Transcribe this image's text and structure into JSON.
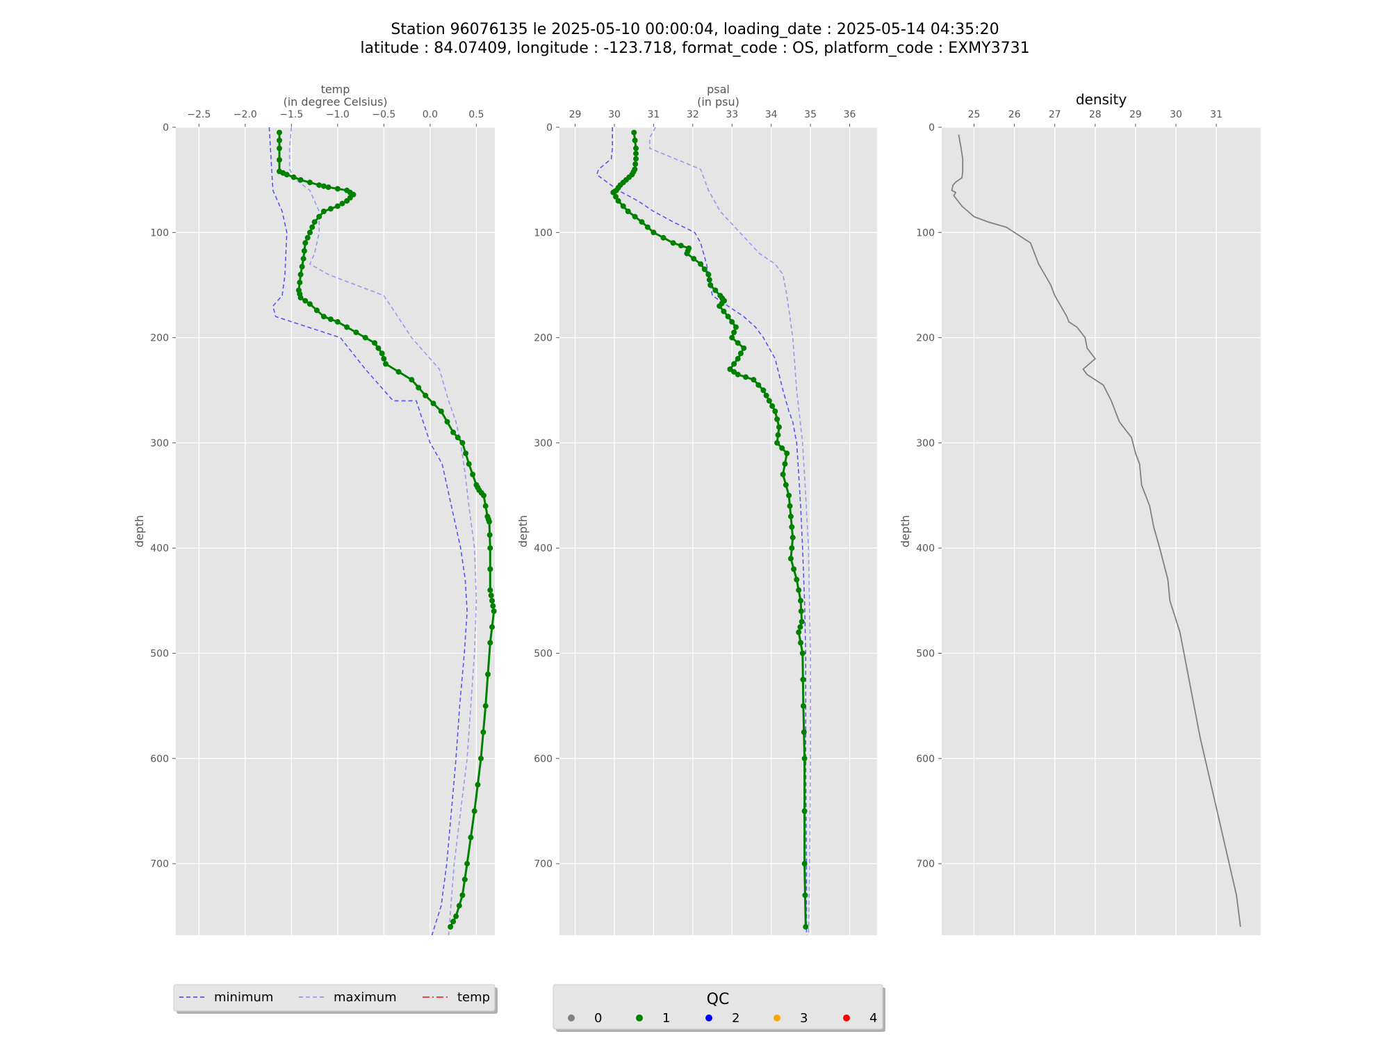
{
  "figure": {
    "title_line1": "Station 96076135 le 2025-05-10 00:00:04, loading_date : 2025-05-14 04:35:20",
    "title_line2": "latitude : 84.07409, longitude : -123.718, format_code : OS, platform_code : EXMY3731"
  },
  "colors": {
    "panel_bg": "#e5e5e5",
    "grid": "#ffffff",
    "minimum": "#5555ee",
    "maximum": "#9999ee",
    "profile": "#008000",
    "density": "#808080",
    "legend_temp": "#ee3333"
  },
  "legend_lines": {
    "items": [
      {
        "label": "minimum",
        "color": "#5555ee",
        "style": "dashed"
      },
      {
        "label": "maximum",
        "color": "#9999ee",
        "style": "dashed"
      },
      {
        "label": "temp",
        "color": "#ee3333",
        "style": "dashdot"
      }
    ]
  },
  "legend_qc": {
    "title": "QC",
    "items": [
      {
        "label": "0",
        "color": "#808080"
      },
      {
        "label": "1",
        "color": "#008000"
      },
      {
        "label": "2",
        "color": "#0000ff"
      },
      {
        "label": "3",
        "color": "#ffa500"
      },
      {
        "label": "4",
        "color": "#ff0000"
      }
    ]
  },
  "chart_data": [
    {
      "type": "line",
      "title": "temp",
      "subtitle": "(in degree Celsius)",
      "ylabel": "depth",
      "xlim": [
        -2.75,
        0.7
      ],
      "ylim": [
        768,
        0
      ],
      "xticks": [
        -2.5,
        -2.0,
        -1.5,
        -1.0,
        -0.5,
        0.0,
        0.5
      ],
      "xtick_labels": [
        "−2.5",
        "−2.0",
        "−1.5",
        "−1.0",
        "−0.5",
        "0.0",
        "0.5"
      ],
      "yticks": [
        0,
        100,
        200,
        300,
        400,
        500,
        600,
        700
      ],
      "grid": true,
      "series": [
        {
          "name": "minimum",
          "style": "dashed",
          "color": "#5555ee",
          "x": [
            -1.74,
            -1.72,
            -1.7,
            -1.6,
            -1.55,
            -1.57,
            -1.6,
            -1.7,
            -1.67,
            -0.97,
            -0.7,
            -0.4,
            -0.15,
            0.0,
            0.13,
            0.18,
            0.33,
            0.38,
            0.4,
            0.37,
            0.32,
            0.28,
            0.23,
            0.18,
            0.12,
            0.02
          ],
          "y": [
            0,
            30,
            60,
            80,
            100,
            140,
            160,
            170,
            180,
            200,
            230,
            260,
            260,
            300,
            320,
            340,
            400,
            430,
            460,
            500,
            550,
            600,
            650,
            700,
            740,
            768
          ]
        },
        {
          "name": "maximum",
          "style": "dashed",
          "color": "#9999ee",
          "x": [
            -1.5,
            -1.52,
            -1.52,
            -1.45,
            -1.3,
            -1.2,
            -1.2,
            -1.25,
            -1.3,
            -1.1,
            -0.5,
            -0.35,
            -0.2,
            0.1,
            0.2,
            0.28,
            0.33,
            0.38,
            0.42,
            0.48,
            0.5,
            0.48,
            0.44,
            0.4,
            0.33,
            0.26,
            0.2
          ],
          "y": [
            0,
            20,
            40,
            50,
            60,
            80,
            100,
            120,
            130,
            140,
            160,
            180,
            200,
            230,
            260,
            280,
            300,
            330,
            360,
            400,
            450,
            500,
            550,
            600,
            650,
            700,
            768
          ]
        },
        {
          "name": "",
          "style": "line-markers",
          "color": "#008000",
          "x": [
            -1.63,
            -1.63,
            -1.63,
            -1.55,
            -1.4,
            -1.2,
            -1.1,
            -0.9,
            -0.83,
            -0.9,
            -1.0,
            -1.15,
            -1.25,
            -1.3,
            -1.35,
            -1.37,
            -1.4,
            -1.42,
            -1.4,
            -1.3,
            -1.15,
            -1.0,
            -0.8,
            -0.6,
            -0.52,
            -0.48,
            -0.2,
            -0.05,
            0.12,
            0.25,
            0.35,
            0.42,
            0.5,
            0.53,
            0.58,
            0.62,
            0.64,
            0.65,
            0.65,
            0.67,
            0.69,
            0.65,
            0.6,
            0.55,
            0.48,
            0.4,
            0.35,
            0.28,
            0.22
          ],
          "y": [
            5,
            20,
            42,
            45,
            50,
            55,
            57,
            60,
            64,
            70,
            75,
            80,
            90,
            100,
            110,
            125,
            140,
            155,
            162,
            168,
            180,
            185,
            195,
            205,
            215,
            225,
            240,
            255,
            270,
            290,
            300,
            320,
            340,
            345,
            350,
            370,
            375,
            400,
            440,
            450,
            460,
            490,
            550,
            600,
            650,
            700,
            730,
            750,
            760
          ]
        }
      ]
    },
    {
      "type": "line",
      "title": "psal",
      "subtitle": "(in psu)",
      "ylabel": "depth",
      "xlim": [
        28.6,
        36.7
      ],
      "ylim": [
        768,
        0
      ],
      "xticks": [
        29,
        30,
        31,
        32,
        33,
        34,
        35,
        36
      ],
      "xtick_labels": [
        "29",
        "30",
        "31",
        "32",
        "33",
        "34",
        "35",
        "36"
      ],
      "yticks": [
        0,
        100,
        200,
        300,
        400,
        500,
        600,
        700
      ],
      "grid": true,
      "series": [
        {
          "name": "minimum",
          "style": "dashed",
          "color": "#5555ee",
          "x": [
            29.95,
            29.95,
            29.92,
            29.6,
            29.55,
            30.1,
            30.6,
            31.0,
            31.5,
            32.05,
            32.2,
            32.35,
            32.5,
            32.9,
            33.3,
            33.6,
            33.8,
            34.1,
            34.3,
            34.45,
            34.55,
            34.65,
            34.7,
            34.75,
            34.8,
            34.85,
            34.88,
            34.88,
            34.9,
            34.9
          ],
          "y": [
            0,
            20,
            30,
            40,
            45,
            60,
            70,
            80,
            90,
            100,
            110,
            130,
            160,
            170,
            180,
            190,
            200,
            220,
            250,
            270,
            280,
            300,
            330,
            360,
            400,
            450,
            500,
            600,
            700,
            768
          ]
        },
        {
          "name": "maximum",
          "style": "dashed",
          "color": "#9999ee",
          "x": [
            31.05,
            30.9,
            30.9,
            32.2,
            32.4,
            32.7,
            33.2,
            33.7,
            34.1,
            34.3,
            34.4,
            34.55,
            34.65,
            34.8,
            34.88,
            34.95,
            35.0,
            35.0,
            34.98,
            34.95
          ],
          "y": [
            0,
            10,
            20,
            40,
            60,
            80,
            100,
            120,
            130,
            140,
            160,
            200,
            250,
            300,
            350,
            400,
            500,
            600,
            700,
            768
          ]
        },
        {
          "name": "",
          "style": "line-markers",
          "color": "#008000",
          "x": [
            30.5,
            30.55,
            30.55,
            30.52,
            30.45,
            30.3,
            30.15,
            30.05,
            29.97,
            30.1,
            30.35,
            30.7,
            31.0,
            31.5,
            31.9,
            31.85,
            32.2,
            32.4,
            32.45,
            32.7,
            32.8,
            32.68,
            32.9,
            33.1,
            33.0,
            33.3,
            33.15,
            32.95,
            33.15,
            33.55,
            33.8,
            33.95,
            34.1,
            34.2,
            34.15,
            34.4,
            34.3,
            34.45,
            34.5,
            34.55,
            34.5,
            34.65,
            34.75,
            34.78,
            34.7,
            34.8,
            34.82,
            34.85,
            34.85,
            34.88
          ],
          "y": [
            5,
            20,
            30,
            40,
            45,
            50,
            55,
            60,
            62,
            70,
            80,
            90,
            100,
            110,
            115,
            120,
            130,
            140,
            150,
            160,
            165,
            170,
            180,
            190,
            200,
            210,
            220,
            230,
            235,
            240,
            250,
            260,
            270,
            285,
            300,
            310,
            330,
            350,
            370,
            390,
            410,
            430,
            450,
            470,
            480,
            500,
            550,
            600,
            700,
            760
          ]
        }
      ]
    },
    {
      "type": "line",
      "title": "density",
      "subtitle": "",
      "ylabel": "depth",
      "xlim": [
        24.2,
        32.1
      ],
      "ylim": [
        768,
        0
      ],
      "xticks": [
        25,
        26,
        27,
        28,
        29,
        30,
        31
      ],
      "xtick_labels": [
        "25",
        "26",
        "27",
        "28",
        "29",
        "30",
        "31"
      ],
      "yticks": [
        0,
        100,
        200,
        300,
        400,
        500,
        600,
        700
      ],
      "grid": true,
      "series": [
        {
          "name": "",
          "style": "line",
          "color": "#808080",
          "x": [
            24.62,
            24.68,
            24.72,
            24.72,
            24.7,
            24.55,
            24.48,
            24.45,
            24.55,
            24.5,
            24.7,
            25.0,
            25.35,
            25.8,
            26.2,
            26.4,
            26.5,
            26.6,
            26.75,
            26.9,
            27.0,
            27.15,
            27.3,
            27.35,
            27.55,
            27.75,
            27.8,
            28.0,
            27.7,
            27.8,
            28.2,
            28.4,
            28.6,
            28.9,
            29.0,
            29.1,
            29.15,
            29.35,
            29.45,
            29.6,
            29.8,
            29.85,
            30.1,
            30.3,
            30.6,
            30.9,
            31.2,
            31.5,
            31.6
          ],
          "y": [
            7,
            20,
            30,
            42,
            48,
            52,
            55,
            60,
            62,
            65,
            75,
            85,
            90,
            95,
            105,
            110,
            120,
            130,
            140,
            150,
            160,
            170,
            180,
            185,
            190,
            200,
            210,
            220,
            230,
            235,
            245,
            260,
            280,
            295,
            310,
            320,
            340,
            360,
            380,
            400,
            430,
            450,
            480,
            520,
            580,
            630,
            680,
            730,
            760
          ]
        }
      ]
    }
  ]
}
